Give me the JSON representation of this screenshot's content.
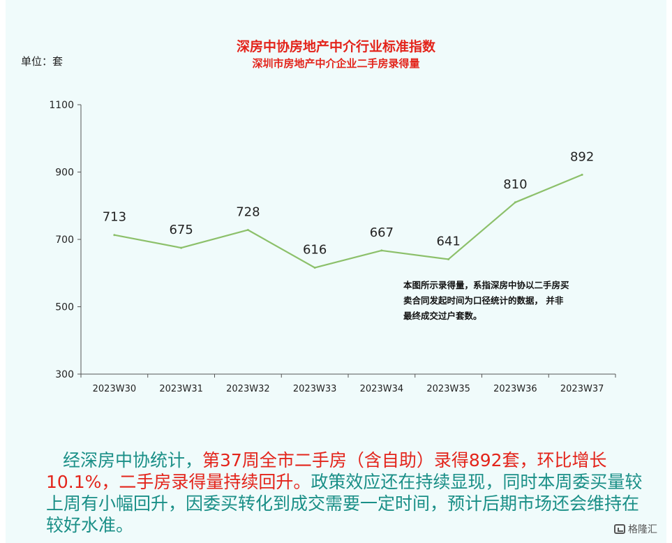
{
  "chart_data": {
    "type": "line",
    "title": "深房中协房地产中介行业标准指数",
    "subtitle": "深圳市房地产中介企业二手房录得量",
    "unit_label": "单位：套",
    "categories": [
      "2023W30",
      "2023W31",
      "2023W32",
      "2023W33",
      "2023W34",
      "2023W35",
      "2023W36",
      "2023W37"
    ],
    "series": [
      {
        "values": [
          713,
          675,
          728,
          616,
          667,
          641,
          810,
          892
        ]
      }
    ],
    "data_labels": [
      "713",
      "675",
      "728",
      "616",
      "667",
      "641",
      "810",
      "892"
    ],
    "yticks": [
      300,
      500,
      700,
      900,
      1100
    ],
    "ylim": [
      300,
      1100
    ],
    "grid": false,
    "line_color": "#8cc06a",
    "note": "本图所示录得量，系指深房中协以二手房买卖合同发起时间为口径统计的数据， 并非最终成交过户套数。"
  },
  "text": {
    "para_part1": "经深房中协统计，",
    "para_part2": "第37周全市二手房（含自助）录得892套，环比增长10.1%，二手房录得量持续回升。",
    "para_part3": "政策效应还在持续显现，同时本周委买量较上周有小幅回升，因委买转化到成交需要一定时间，预计后期市场还会维持在较好水准。"
  },
  "watermark": {
    "label": "格隆汇",
    "icon": "gelonghui-logo-icon"
  },
  "colors": {
    "accent_red": "#e3241b",
    "teal_text": "#1a8f87",
    "background": "#f0fbfb"
  }
}
